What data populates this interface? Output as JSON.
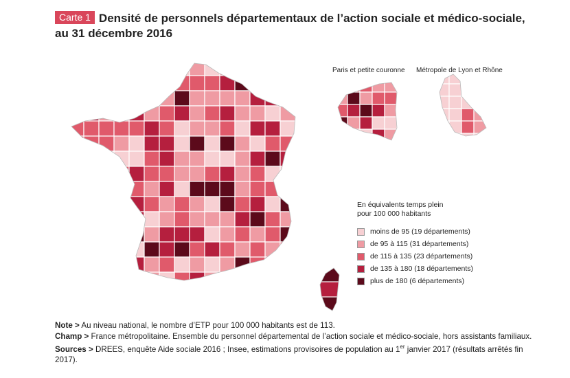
{
  "title": {
    "badge": "Carte 1",
    "line1": "Densité de personnels départementaux de l’action sociale et médico-sociale,",
    "line2": "au 31 décembre 2016"
  },
  "insets": {
    "paris": "Paris et petite couronne",
    "lyon": "Métropole de Lyon et Rhône"
  },
  "legend": {
    "title_line1": "En équivalents temps plein",
    "title_line2": "pour 100 000 habitants",
    "items": [
      {
        "label": "moins de 95 (19 départements)",
        "color": "#f7d0d3"
      },
      {
        "label": "de 95 à 115 (31 départements)",
        "color": "#ef9ba3"
      },
      {
        "label": "de 115 à 135 (23 départements)",
        "color": "#e05a6b"
      },
      {
        "label": "de 135 à 180 (18 départements)",
        "color": "#b51f3e"
      },
      {
        "label": "plus de 180 (6 départements)",
        "color": "#5c0a1b"
      }
    ]
  },
  "notes": {
    "note_label": "Note >",
    "note_text": " Au niveau national, le nombre d’ETP pour 100 000 habitants est de 113.",
    "champ_label": "Champ >",
    "champ_text": " France métropolitaine. Ensemble du personnel départemental de l’action sociale et médico-sociale, hors assistants familiaux.",
    "sources_label": "Sources >",
    "sources_text_a": " DREES, enquête Aide sociale 2016 ; Insee, estimations provisoires de population au 1",
    "sources_sup": "er",
    "sources_text_b": " janvier 2017 (résultats arrêtés fin 2017)."
  }
}
